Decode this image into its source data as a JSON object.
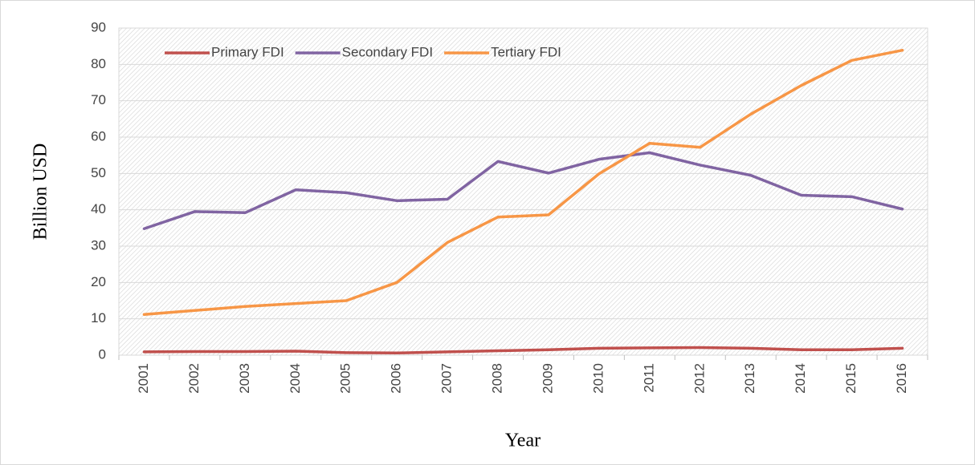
{
  "chart_data": {
    "type": "line",
    "x_label": "Year",
    "y_label": "Billion USD",
    "categories": [
      "2001",
      "2002",
      "2003",
      "2004",
      "2005",
      "2006",
      "2007",
      "2008",
      "2009",
      "2010",
      "2011",
      "2012",
      "2013",
      "2014",
      "2015",
      "2016"
    ],
    "series": [
      {
        "name": "Primary FDI",
        "color": "#c0504d",
        "values": [
          0.9,
          1.0,
          1.0,
          1.1,
          0.7,
          0.6,
          0.9,
          1.2,
          1.5,
          1.9,
          2.0,
          2.1,
          1.9,
          1.5,
          1.5,
          1.9
        ]
      },
      {
        "name": "Secondary FDI",
        "color": "#8064a2",
        "values": [
          34.8,
          39.5,
          39.2,
          45.5,
          44.7,
          42.5,
          42.9,
          53.3,
          50.1,
          53.9,
          55.7,
          52.3,
          49.5,
          44.0,
          43.6,
          40.2
        ]
      },
      {
        "name": "Tertiary FDI",
        "color": "#f79646",
        "values": [
          11.2,
          12.3,
          13.4,
          14.2,
          15.0,
          20.0,
          31.0,
          38.0,
          38.6,
          49.9,
          58.3,
          57.2,
          66.3,
          74.2,
          81.1,
          83.9
        ]
      }
    ],
    "ylim": [
      0,
      90
    ],
    "yticks": [
      0,
      10,
      20,
      30,
      40,
      50,
      60,
      70,
      80,
      90
    ],
    "grid": true,
    "legend": "upper left"
  }
}
